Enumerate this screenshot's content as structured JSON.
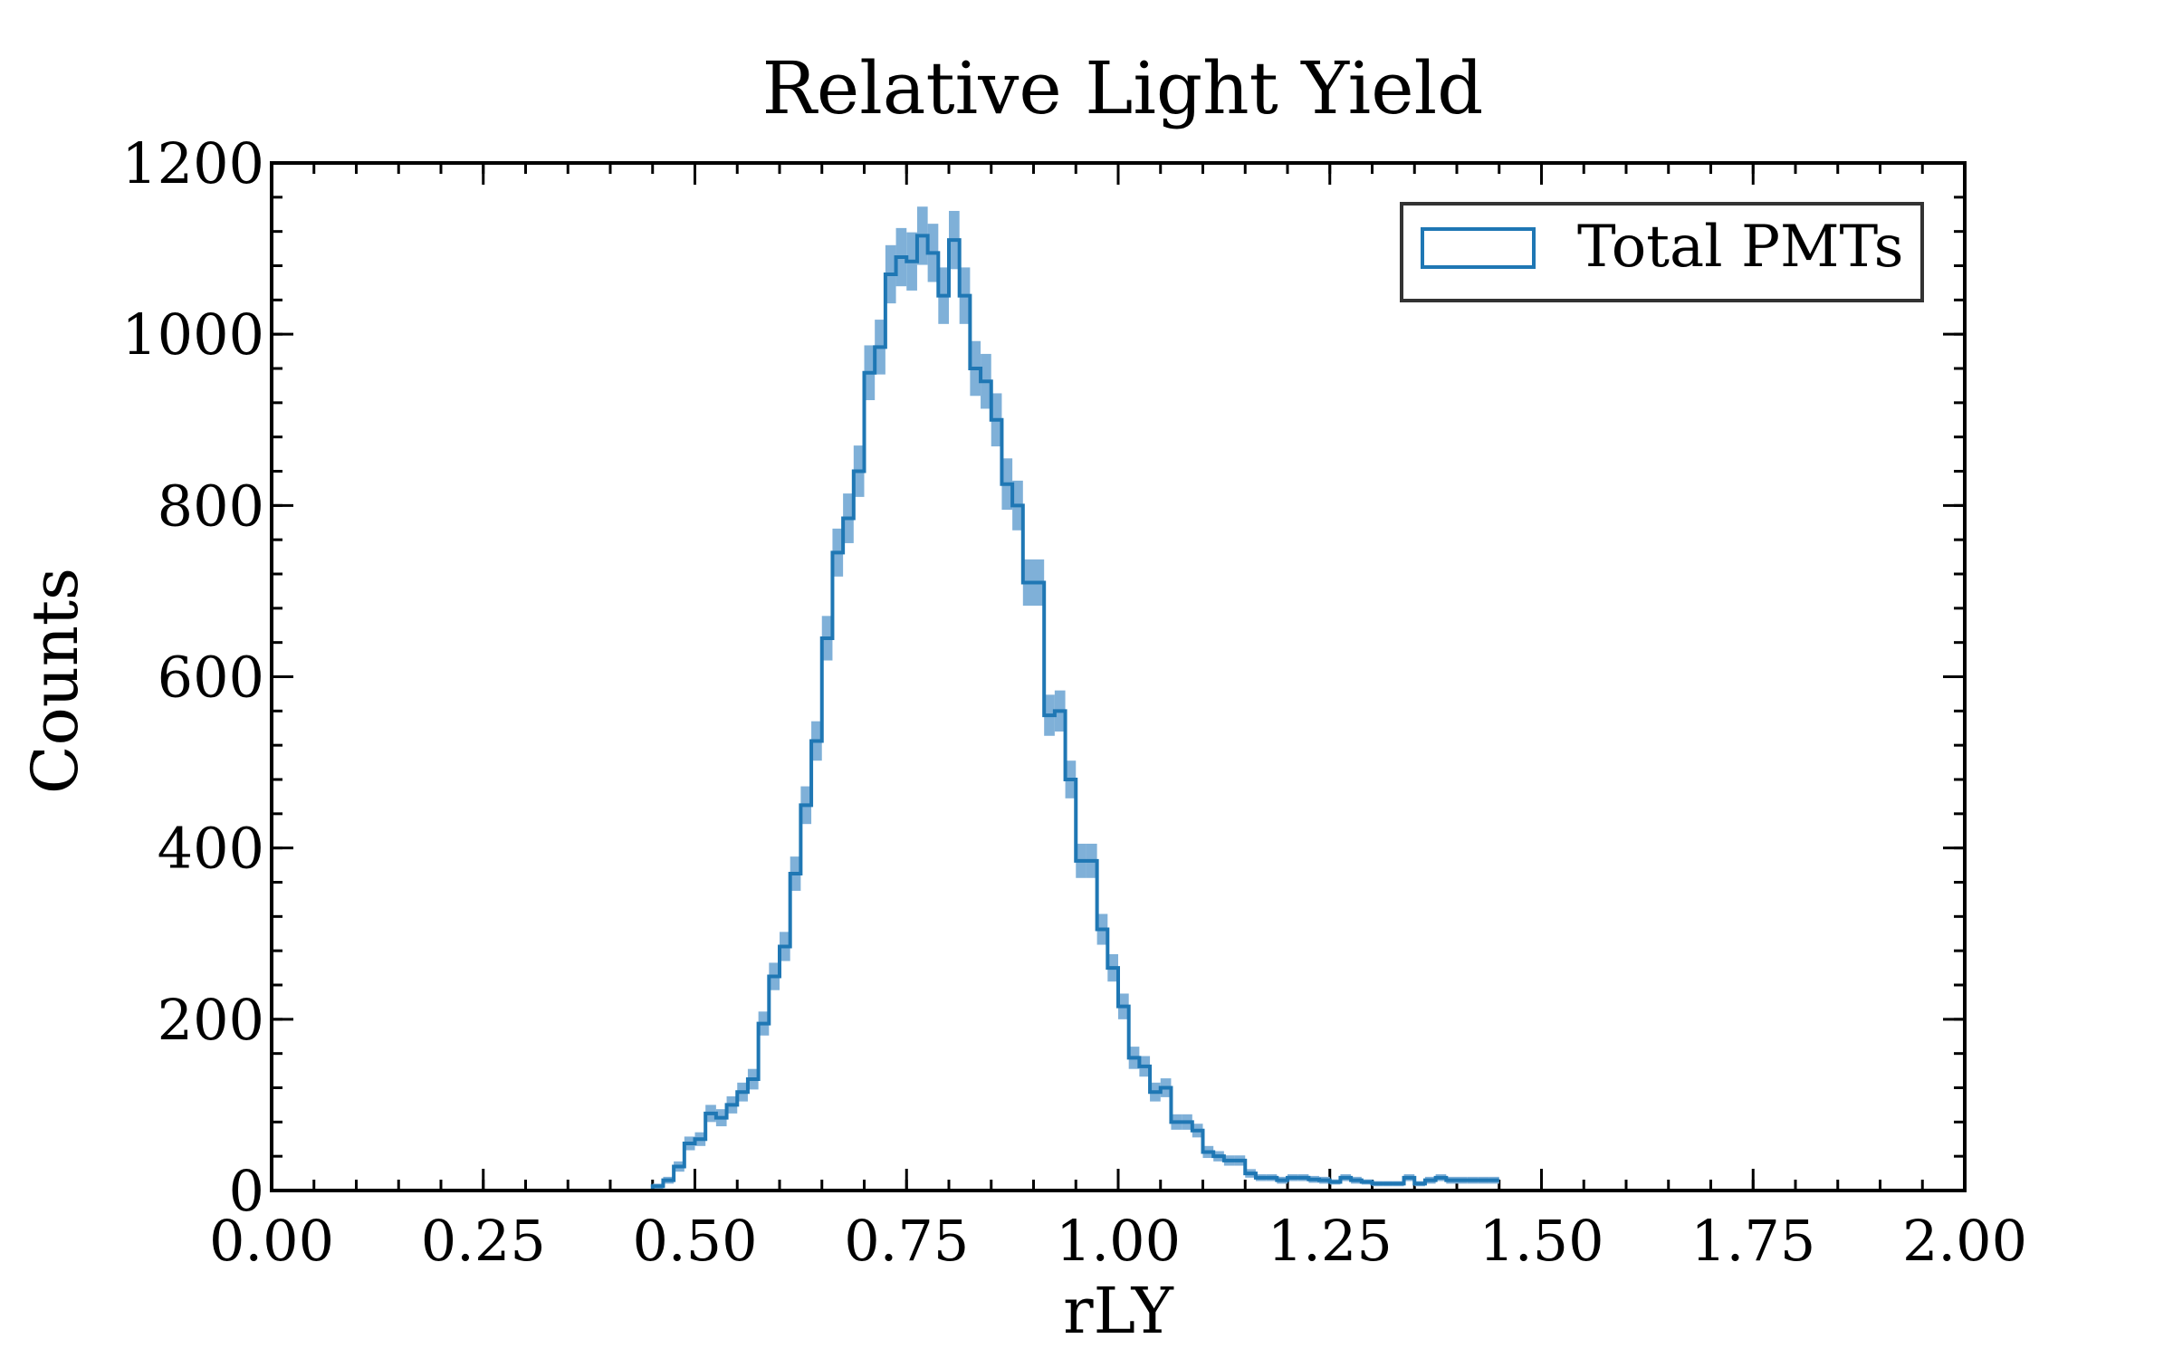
{
  "chart_data": {
    "type": "histogram",
    "title": "Relative Light Yield",
    "xlabel": "rLY",
    "ylabel": "Counts",
    "xlim": [
      0,
      2
    ],
    "ylim": [
      0,
      1200
    ],
    "xticks": [
      "0.00",
      "0.25",
      "0.50",
      "0.75",
      "1.00",
      "1.25",
      "1.50",
      "1.75",
      "2.00"
    ],
    "yticks": [
      "0",
      "200",
      "400",
      "600",
      "800",
      "1000",
      "1200"
    ],
    "grid": false,
    "legend_position": "top-right",
    "colors": {
      "line": "#1f77b4",
      "band": "#7fb0d8"
    },
    "series": [
      {
        "name": "Total PMTs",
        "bin_width": 0.0125,
        "bin_edges_start": 0.4375,
        "values": [
          0,
          5,
          12,
          28,
          55,
          60,
          90,
          85,
          100,
          115,
          130,
          195,
          250,
          285,
          370,
          450,
          525,
          645,
          745,
          785,
          840,
          955,
          985,
          1070,
          1090,
          1085,
          1115,
          1095,
          1045,
          1110,
          1045,
          960,
          945,
          900,
          825,
          800,
          710,
          710,
          555,
          560,
          480,
          385,
          385,
          305,
          260,
          215,
          155,
          145,
          115,
          120,
          80,
          80,
          70,
          45,
          40,
          35,
          35,
          20,
          15,
          15,
          12,
          15,
          15,
          13,
          12,
          10,
          15,
          12,
          10,
          8,
          8,
          8,
          15,
          8,
          12,
          15,
          12,
          12,
          12,
          12,
          12
        ],
        "errors": [
          0,
          3,
          4,
          6,
          8,
          8,
          10,
          10,
          10,
          11,
          12,
          14,
          16,
          17,
          20,
          22,
          23,
          26,
          28,
          29,
          30,
          32,
          32,
          34,
          34,
          34,
          34,
          34,
          33,
          34,
          33,
          32,
          32,
          31,
          30,
          29,
          27,
          27,
          24,
          24,
          22,
          20,
          20,
          18,
          16,
          15,
          13,
          12,
          11,
          11,
          9,
          9,
          8,
          7,
          6,
          6,
          6,
          5,
          4,
          4,
          4,
          4,
          4,
          4,
          4,
          3,
          4,
          4,
          3,
          3,
          3,
          3,
          4,
          3,
          4,
          4,
          4,
          4,
          4,
          4,
          4
        ]
      }
    ]
  }
}
